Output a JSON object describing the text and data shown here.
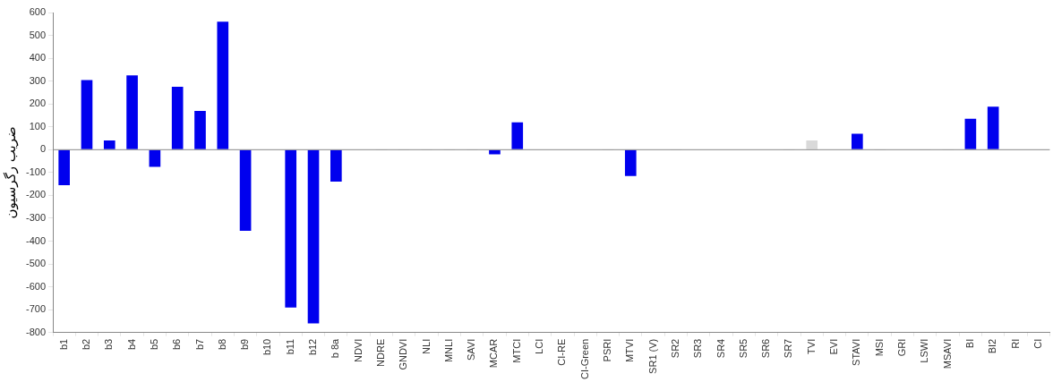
{
  "chart_data": {
    "type": "bar",
    "ylabel": "ضریب رگرسیون",
    "categories": [
      "b1",
      "b2",
      "b3",
      "b4",
      "b5",
      "b6",
      "b7",
      "b8",
      "b9",
      "b10",
      "b11",
      "b12",
      "b 8a",
      "NDVI",
      "NDRE",
      "GNDVI",
      "NLI",
      "MNLI",
      "SAVI",
      "MCAR",
      "MTCI",
      "LCI",
      "CI-RE",
      "CI-Green",
      "PSRI",
      "MTVI",
      "SR1 (V)",
      "SR2",
      "SR3",
      "SR4",
      "SR5",
      "SR6",
      "SR7",
      "TVI",
      "EVI",
      "STAVI",
      "MSI",
      "GRI",
      "LSWI",
      "MSAVI",
      "BI",
      "BI2",
      "RI",
      "CI"
    ],
    "values": [
      -155,
      305,
      40,
      325,
      -75,
      275,
      170,
      560,
      -355,
      -2,
      -690,
      -760,
      -140,
      -2,
      -1,
      -1,
      -1,
      -1,
      -1,
      -20,
      120,
      -2,
      -2,
      -2,
      -1,
      -115,
      -2,
      -1,
      -2,
      -2,
      -2,
      -2,
      -1,
      40,
      -2,
      70,
      -1,
      -2,
      -1,
      -1,
      135,
      188,
      -2,
      -2
    ],
    "colors": [
      "#0000ee",
      "#0000ee",
      "#0000ee",
      "#0000ee",
      "#0000ee",
      "#0000ee",
      "#0000ee",
      "#0000ee",
      "#0000ee",
      "#999999",
      "#0000ee",
      "#0000ee",
      "#0000ee",
      "#999999",
      "#999999",
      "#999999",
      "#999999",
      "#999999",
      "#999999",
      "#0000ee",
      "#0000ee",
      "#999999",
      "#999999",
      "#999999",
      "#999999",
      "#0000ee",
      "#999999",
      "#999999",
      "#999999",
      "#999999",
      "#999999",
      "#999999",
      "#999999",
      "#d9d9d9",
      "#999999",
      "#0000ee",
      "#999999",
      "#999999",
      "#999999",
      "#999999",
      "#0000ee",
      "#0000ee",
      "#999999",
      "#999999"
    ],
    "ylim": [
      -800,
      600
    ],
    "yticks": [
      -800,
      -700,
      -600,
      -500,
      -400,
      -300,
      -200,
      -100,
      0,
      100,
      200,
      300,
      400,
      500,
      600
    ],
    "ref_lines": [
      {
        "axis": "y",
        "value": 0,
        "color": "#888888"
      }
    ],
    "grid": false,
    "legend": false
  }
}
